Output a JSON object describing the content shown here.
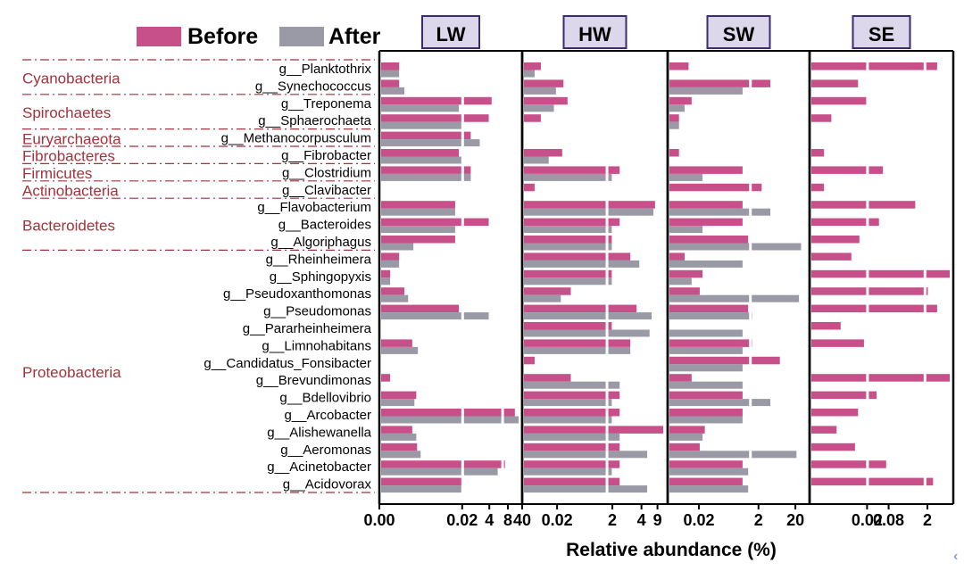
{
  "chart_data": {
    "type": "bar",
    "orientation": "horizontal",
    "title": "",
    "xlabel": "Relative abundance (%)",
    "legend": [
      {
        "label": "Before",
        "color": "#c8508a"
      },
      {
        "label": "After",
        "color": "#9a9aa6"
      }
    ],
    "categories": [
      "g__Planktothrix",
      "g__Synechococcus",
      "g__Treponema",
      "g__Sphaerochaeta",
      "g__Methanocorpusculum",
      "g__Fibrobacter",
      "g__Clostridium",
      "g__Clavibacter",
      "g__Flavobacterium",
      "g__Bacteroides",
      "g__Algoriphagus",
      "g__Rheinheimera",
      "g__Sphingopyxis",
      "g__Pseudoxanthomonas",
      "g__Pseudomonas",
      "g__Pararheinheimera",
      "g__Limnohabitans",
      "g__Candidatus_Fonsibacter",
      "g__Brevundimonas",
      "g__Bdellovibrio",
      "g__Arcobacter",
      "g__Alishewanella",
      "g__Aeromonas",
      "g__Acinetobacter",
      "g__Acidovorax"
    ],
    "phyla": [
      {
        "name": "Cyanobacteria",
        "first": 0,
        "last": 1
      },
      {
        "name": "Spirochaetes",
        "first": 2,
        "last": 3
      },
      {
        "name": "Euryarchaeota",
        "first": 4,
        "last": 4
      },
      {
        "name": "Fibrobacteres",
        "first": 5,
        "last": 5
      },
      {
        "name": "Firmicutes",
        "first": 6,
        "last": 6
      },
      {
        "name": "Actinobacteria",
        "first": 7,
        "last": 7
      },
      {
        "name": "Bacteroidetes",
        "first": 8,
        "last": 10
      },
      {
        "name": "Proteobacteria",
        "first": 11,
        "last": 24
      }
    ],
    "panels": [
      {
        "name": "LW",
        "xlim": [
          0,
          40
        ],
        "ticks": [
          "0.00",
          "0.02",
          "4",
          "8",
          "40"
        ],
        "before": [
          0.003,
          0.003,
          5,
          4,
          1,
          0.4,
          1,
          0,
          0.3,
          4,
          0.3,
          0.003,
          0.001,
          0.005,
          0.4,
          0,
          0.01,
          0,
          0.001,
          0.014,
          30,
          0.01,
          0.015,
          14,
          0.5
        ],
        "after": [
          0.003,
          0.005,
          0.4,
          0.5,
          2,
          0.5,
          1,
          0,
          0.3,
          0.3,
          0.011,
          0.003,
          0.001,
          0.007,
          4,
          0,
          0.016,
          0,
          0,
          0.012,
          40,
          0.014,
          0.02,
          8,
          0.5
        ]
      },
      {
        "name": "HW",
        "xlim": [
          0,
          9
        ],
        "ticks": [
          "0.02",
          "2",
          "4",
          "9"
        ],
        "before": [
          0.002,
          0.012,
          0.016,
          0.002,
          0,
          0.011,
          0.5,
          0.001,
          5,
          0.5,
          0.3,
          1,
          0.3,
          0.02,
          1.5,
          0.3,
          1,
          0.001,
          0.02,
          0.5,
          0.5,
          8.5,
          0.5,
          0.5,
          0.5
        ],
        "after": [
          0.001,
          0.007,
          0.006,
          0,
          0,
          0.004,
          0.3,
          0,
          4.5,
          0.3,
          0.3,
          1.8,
          0.3,
          0.01,
          4,
          3.5,
          1,
          0,
          0.5,
          0.3,
          0.3,
          0.5,
          3,
          0.3,
          3
        ]
      },
      {
        "name": "SW",
        "xlim": [
          0,
          20
        ],
        "ticks": [
          "0.02",
          "2",
          "20"
        ],
        "before": [
          0.003,
          1.5,
          0.004,
          0.001,
          0,
          0.001,
          0.2,
          0.8,
          0.2,
          0.2,
          0.3,
          0.002,
          0.01,
          0.008,
          0.3,
          0,
          0.4,
          3,
          0.004,
          0.2,
          0.2,
          0.012,
          0.008,
          0.2,
          0.2
        ],
        "after": [
          0,
          0.2,
          0.002,
          0.001,
          0,
          0,
          0.01,
          0,
          1.5,
          0.01,
          14,
          0.2,
          0.004,
          12,
          0.4,
          0.2,
          0.2,
          0.2,
          0.2,
          1.5,
          0.2,
          0.01,
          10,
          0.3,
          0.3
        ]
      },
      {
        "name": "SE",
        "xlim": [
          0,
          2
        ],
        "ticks": [
          "0.02",
          "0.08",
          "2"
        ],
        "before": [
          1,
          0.012,
          0.02,
          0.002,
          0,
          0.001,
          0.05,
          0.001,
          0.3,
          0.04,
          0.013,
          0.008,
          2,
          0.6,
          1,
          0.004,
          0.017,
          0,
          2,
          0.035,
          0.012,
          0.003,
          0.01,
          0.06,
          0.8
        ],
        "after": [
          0,
          0,
          0,
          0,
          0,
          0,
          0,
          0,
          0,
          0,
          0,
          0,
          0,
          0,
          0,
          0,
          0,
          0,
          0,
          0,
          0,
          0,
          0,
          0,
          0
        ]
      }
    ]
  }
}
